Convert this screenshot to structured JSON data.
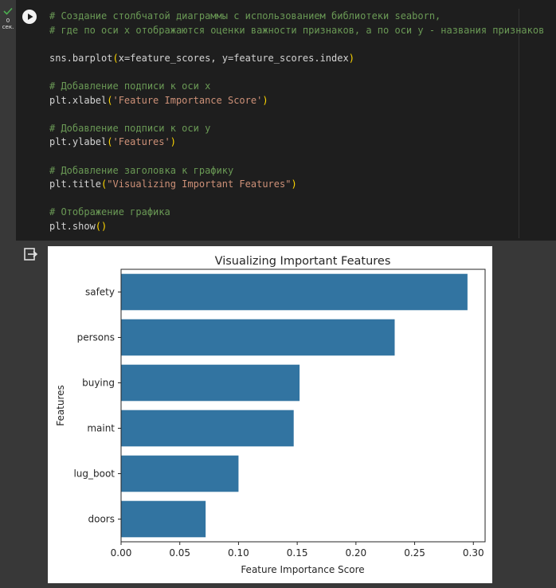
{
  "cell": {
    "exec_count": "0",
    "exec_unit": "сек.",
    "code_lines": [
      [
        {
          "t": "# Создание столбчатой диаграммы с использованием библиотеки seaborn,",
          "c": "c-comment"
        }
      ],
      [
        {
          "t": "# где по оси x отображаются оценки важности признаков, а по оси y - названия признаков",
          "c": "c-comment"
        }
      ],
      [],
      [
        {
          "t": "sns.barplot",
          "c": "c-text"
        },
        {
          "t": "(",
          "c": "c-paren"
        },
        {
          "t": "x=feature_scores, y=feature_scores.index",
          "c": "c-text"
        },
        {
          "t": ")",
          "c": "c-paren"
        }
      ],
      [],
      [
        {
          "t": "# Добавление подписи к оси x",
          "c": "c-comment"
        }
      ],
      [
        {
          "t": "plt.xlabel",
          "c": "c-text"
        },
        {
          "t": "(",
          "c": "c-paren"
        },
        {
          "t": "'Feature Importance Score'",
          "c": "c-str"
        },
        {
          "t": ")",
          "c": "c-paren"
        }
      ],
      [],
      [
        {
          "t": "# Добавление подписи к оси y",
          "c": "c-comment"
        }
      ],
      [
        {
          "t": "plt.ylabel",
          "c": "c-text"
        },
        {
          "t": "(",
          "c": "c-paren"
        },
        {
          "t": "'Features'",
          "c": "c-str"
        },
        {
          "t": ")",
          "c": "c-paren"
        }
      ],
      [],
      [
        {
          "t": "# Добавление заголовка к графику",
          "c": "c-comment"
        }
      ],
      [
        {
          "t": "plt.title",
          "c": "c-text"
        },
        {
          "t": "(",
          "c": "c-paren"
        },
        {
          "t": "\"Visualizing Important Features\"",
          "c": "c-str"
        },
        {
          "t": ")",
          "c": "c-paren"
        }
      ],
      [],
      [
        {
          "t": "# Отображение графика",
          "c": "c-comment"
        }
      ],
      [
        {
          "t": "plt.show",
          "c": "c-text"
        },
        {
          "t": "()",
          "c": "c-paren"
        }
      ]
    ]
  },
  "icons": {
    "status": "checkmark-icon",
    "run": "play-icon",
    "output": "output-redirect-icon"
  },
  "colors": {
    "bar": "#3274a1",
    "comment": "#6a9955",
    "string": "#ce9178",
    "paren": "#ffd700",
    "status_ok": "#4caf50"
  },
  "chart_data": {
    "type": "bar",
    "orientation": "horizontal",
    "title": "Visualizing Important Features",
    "xlabel": "Feature Importance Score",
    "ylabel": "Features",
    "categories": [
      "safety",
      "persons",
      "buying",
      "maint",
      "lug_boot",
      "doors"
    ],
    "values": [
      0.295,
      0.233,
      0.152,
      0.147,
      0.1,
      0.072
    ],
    "xlim": [
      0,
      0.31
    ],
    "xticks": [
      "0.00",
      "0.05",
      "0.10",
      "0.15",
      "0.20",
      "0.25",
      "0.30"
    ],
    "grid": false
  }
}
